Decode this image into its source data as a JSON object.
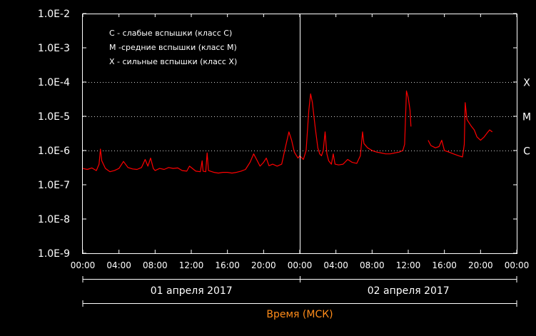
{
  "chart_data": {
    "type": "line",
    "y_scale": "log",
    "ylim": [
      "1.0E-9",
      "1.0E-2"
    ],
    "y_tick_labels": [
      "1.0E-2",
      "1.0E-3",
      "1.0E-4",
      "1.0E-5",
      "1.0E-6",
      "1.0E-7",
      "1.0E-8",
      "1.0E-9"
    ],
    "x_tick_labels": [
      "00:00",
      "04:00",
      "08:00",
      "12:00",
      "16:00",
      "20:00",
      "00:00",
      "04:00",
      "08:00",
      "12:00",
      "16:00",
      "20:00",
      "00:00"
    ],
    "x_range_hours": [
      0,
      48
    ],
    "date_labels": [
      "01 апреля 2017",
      "02 апреля 2017"
    ],
    "xlabel": "Время (МСК)",
    "legend": [
      "C - слабые вспышки (класс C)",
      "M -средние вспышки (класс M)",
      "X - сильные вспышки (класс X)"
    ],
    "class_lines": [
      {
        "label": "X",
        "value": "1.0E-4"
      },
      {
        "label": "M",
        "value": "1.0E-5"
      },
      {
        "label": "C",
        "value": "1.0E-6"
      }
    ],
    "colors": {
      "series": "#ff0000",
      "axis": "#ffffff",
      "xlabel": "#ff8c1a",
      "background": "#000000"
    },
    "series": [
      {
        "values": [
          [
            0,
            "3.0E-7"
          ],
          [
            0.5,
            "2.8E-7"
          ],
          [
            1,
            "3.1E-7"
          ],
          [
            1.5,
            "2.6E-7"
          ],
          [
            1.8,
            "4E-7"
          ],
          [
            1.95,
            "1.1E-6"
          ],
          [
            2.1,
            "5E-7"
          ],
          [
            2.5,
            "3E-7"
          ],
          [
            3,
            "2.4E-7"
          ],
          [
            3.5,
            "2.6E-7"
          ],
          [
            4,
            "3.0E-7"
          ],
          [
            4.5,
            "4.8E-7"
          ],
          [
            5,
            "3.2E-7"
          ],
          [
            5.5,
            "2.9E-7"
          ],
          [
            6,
            "2.8E-7"
          ],
          [
            6.5,
            "3.2E-7"
          ],
          [
            6.9,
            "5.5E-7"
          ],
          [
            7.2,
            "3.5E-7"
          ],
          [
            7.5,
            "6E-7"
          ],
          [
            7.8,
            "3.0E-7"
          ],
          [
            8,
            "2.6E-7"
          ],
          [
            8.5,
            "3.0E-7"
          ],
          [
            9,
            "2.8E-7"
          ],
          [
            9.5,
            "3.2E-7"
          ],
          [
            10,
            "3.0E-7"
          ],
          [
            10.5,
            "3.1E-7"
          ],
          [
            11,
            "2.6E-7"
          ],
          [
            11.5,
            "2.5E-7"
          ],
          [
            11.8,
            "3.5E-7"
          ],
          [
            12.5,
            "2.5E-7"
          ],
          [
            13,
            "2.4E-7"
          ],
          [
            13.2,
            "5E-7"
          ],
          [
            13.3,
            "2.5E-7"
          ],
          [
            13.6,
            "2.4E-7"
          ],
          [
            13.75,
            "8.5E-7"
          ],
          [
            13.9,
            "2.6E-7"
          ],
          [
            14.5,
            "2.3E-7"
          ],
          [
            15,
            "2.2E-7"
          ],
          [
            15.5,
            "2.3E-7"
          ],
          [
            16,
            "2.3E-7"
          ],
          [
            16.5,
            "2.2E-7"
          ],
          [
            17,
            "2.3E-7"
          ],
          [
            17.5,
            "2.5E-7"
          ],
          [
            18,
            "2.8E-7"
          ],
          [
            18.5,
            "4.5E-7"
          ],
          [
            18.9,
            "8E-7"
          ],
          [
            19.3,
            "5E-7"
          ],
          [
            19.6,
            "3.5E-7"
          ],
          [
            20,
            "4.5E-7"
          ],
          [
            20.3,
            "6E-7"
          ],
          [
            20.6,
            "3.6E-7"
          ],
          [
            21,
            "4.0E-7"
          ],
          [
            21.5,
            "3.5E-7"
          ],
          [
            22,
            "4.0E-7"
          ],
          [
            22.4,
            "1.2E-6"
          ],
          [
            22.8,
            "3.5E-6"
          ],
          [
            23.1,
            "2.0E-6"
          ],
          [
            23.4,
            "9E-7"
          ],
          [
            23.8,
            "6E-7"
          ],
          [
            24,
            "7E-7"
          ],
          [
            24.4,
            "5.5E-7"
          ],
          [
            24.7,
            "1.0E-6"
          ],
          [
            25,
            "1.5E-5"
          ],
          [
            25.2,
            "4.5E-5"
          ],
          [
            25.4,
            "2.5E-5"
          ],
          [
            25.7,
            "5E-6"
          ],
          [
            26,
            "1.2E-6"
          ],
          [
            26.2,
            "8E-7"
          ],
          [
            26.4,
            "7E-7"
          ],
          [
            26.6,
            "1.0E-6"
          ],
          [
            26.8,
            "3.5E-6"
          ],
          [
            27,
            "8E-7"
          ],
          [
            27.2,
            "5E-7"
          ],
          [
            27.5,
            "4E-7"
          ],
          [
            27.7,
            "8E-7"
          ],
          [
            27.9,
            "4E-7"
          ],
          [
            28.3,
            "3.8E-7"
          ],
          [
            28.8,
            "4E-7"
          ],
          [
            29.3,
            "5.5E-7"
          ],
          [
            29.8,
            "4.5E-7"
          ],
          [
            30.3,
            "4.2E-7"
          ],
          [
            30.7,
            "7E-7"
          ],
          [
            30.95,
            "3.5E-6"
          ],
          [
            31.1,
            "1.6E-6"
          ],
          [
            31.5,
            "1.2E-6"
          ],
          [
            32,
            "1.0E-6"
          ],
          [
            32.5,
            "9E-7"
          ],
          [
            33,
            "8.5E-7"
          ],
          [
            33.5,
            "8E-7"
          ],
          [
            34,
            "8E-7"
          ],
          [
            34.5,
            "8.5E-7"
          ],
          [
            35,
            "9E-7"
          ],
          [
            35.4,
            "1.0E-6"
          ],
          [
            35.6,
            "1.5E-6"
          ],
          [
            35.8,
            "5.5E-5"
          ],
          [
            36,
            "3.5E-5"
          ],
          [
            36.2,
            "1.5E-5"
          ],
          [
            36.3,
            "5E-6"
          ]
        ]
      },
      {
        "values": [
          [
            38.2,
            "2.0E-6"
          ],
          [
            38.5,
            "1.4E-6"
          ],
          [
            39,
            "1.2E-6"
          ],
          [
            39.4,
            "1.3E-6"
          ],
          [
            39.7,
            "2.0E-6"
          ],
          [
            40,
            "1.0E-6"
          ],
          [
            40.5,
            "9E-7"
          ],
          [
            41,
            "8E-7"
          ],
          [
            41.6,
            "7E-7"
          ],
          [
            42,
            "6.5E-7"
          ],
          [
            42.2,
            "1.5E-6"
          ],
          [
            42.3,
            "2.5E-5"
          ],
          [
            42.5,
            "8E-6"
          ],
          [
            43,
            "5E-6"
          ],
          [
            43.3,
            "4E-6"
          ],
          [
            43.6,
            "2.5E-6"
          ],
          [
            44,
            "2.0E-6"
          ],
          [
            44.4,
            "2.5E-6"
          ],
          [
            44.7,
            "3.2E-6"
          ],
          [
            45,
            "4.0E-6"
          ],
          [
            45.3,
            "3.5E-6"
          ]
        ]
      }
    ]
  }
}
